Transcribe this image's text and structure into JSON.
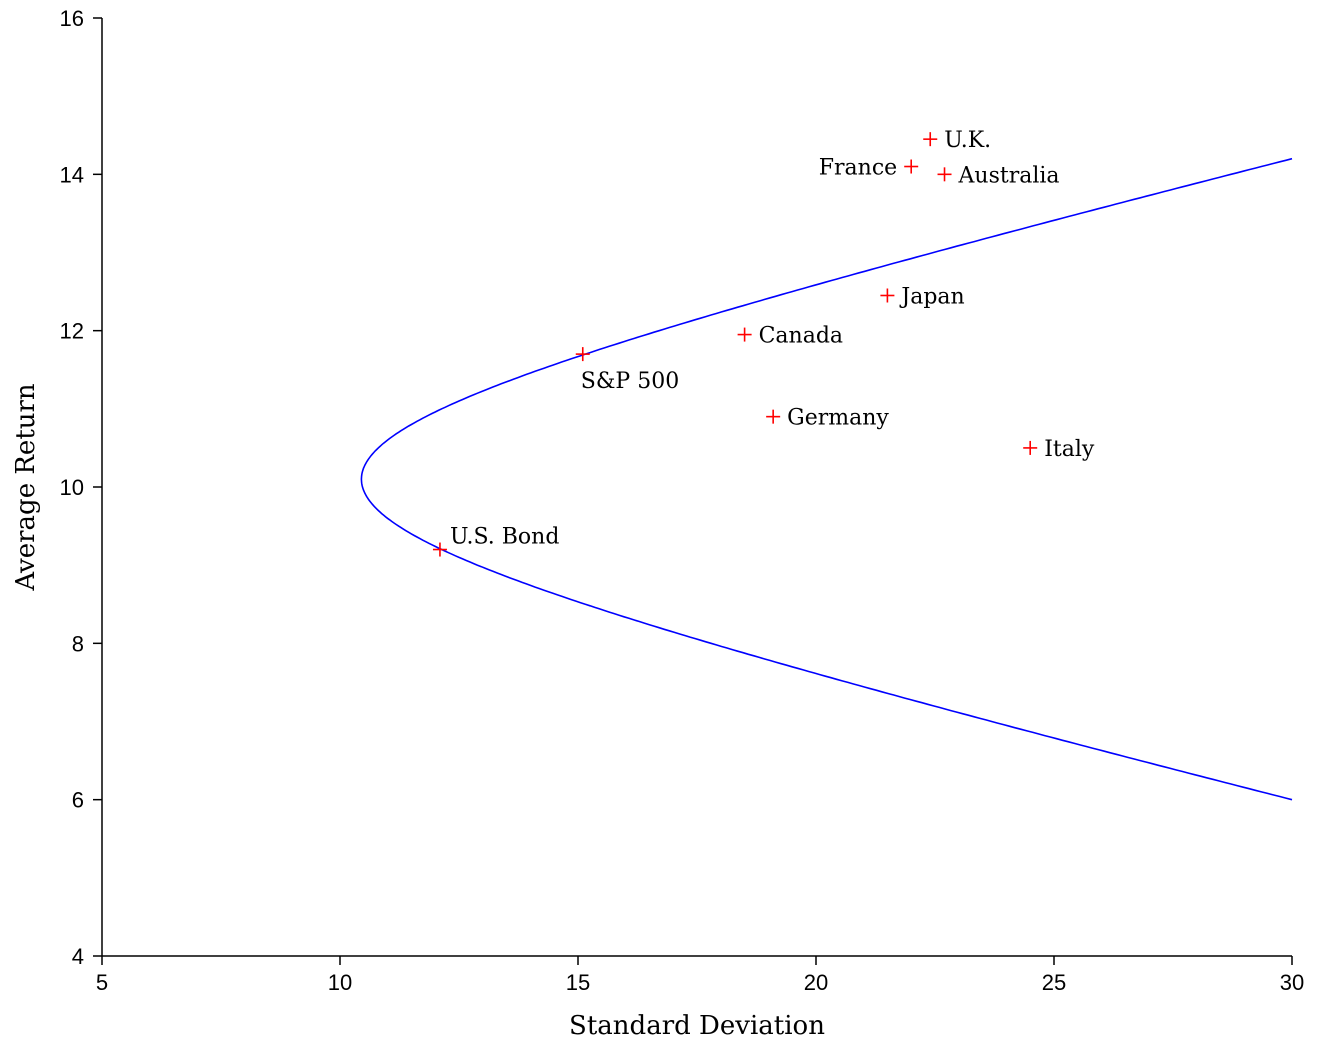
{
  "chart_data": {
    "type": "scatter",
    "xlabel": "Standard Deviation",
    "ylabel": "Average Return",
    "xlim": [
      5,
      30
    ],
    "ylim": [
      4,
      16
    ],
    "xticks": [
      5,
      10,
      15,
      20,
      25,
      30
    ],
    "yticks": [
      4,
      6,
      8,
      10,
      12,
      14,
      16
    ],
    "grid": false,
    "colors": {
      "points": "#ff0000",
      "frontier": "#0000ff",
      "axes": "#000000"
    },
    "points": [
      {
        "label": "U.S. Bond",
        "x": 12.1,
        "y": 9.2
      },
      {
        "label": "S&P 500",
        "x": 15.1,
        "y": 11.7
      },
      {
        "label": "Canada",
        "x": 18.5,
        "y": 11.95
      },
      {
        "label": "Germany",
        "x": 19.1,
        "y": 10.9
      },
      {
        "label": "Japan",
        "x": 21.5,
        "y": 12.45
      },
      {
        "label": "Italy",
        "x": 24.5,
        "y": 10.5
      },
      {
        "label": "France",
        "x": 22.0,
        "y": 14.1
      },
      {
        "label": "U.K.",
        "x": 22.4,
        "y": 14.45
      },
      {
        "label": "Australia",
        "x": 22.7,
        "y": 14.0
      }
    ],
    "frontier": {
      "type": "line",
      "x": [
        30.0,
        28.0,
        26.0,
        24.0,
        22.0,
        20.0,
        18.0,
        16.0,
        14.0,
        13.0,
        12.1,
        11.5,
        11.0,
        10.7,
        10.5,
        10.45,
        10.5,
        10.7,
        11.0,
        11.5,
        12.1,
        13.0,
        14.0,
        15.1,
        16.0,
        18.0,
        20.0,
        22.0,
        24.0,
        26.0,
        28.0,
        30.0
      ],
      "y": [
        6.0,
        6.45,
        6.9,
        7.35,
        7.85,
        8.4,
        8.95,
        9.45,
        9.9,
        10.2,
        9.2,
        9.45,
        9.65,
        9.85,
        10.0,
        10.1,
        10.25,
        10.45,
        10.65,
        10.95,
        11.25,
        11.55,
        11.8,
        12.05,
        12.2,
        12.55,
        12.95,
        13.35,
        13.7,
        14.0,
        14.3,
        14.2
      ]
    }
  }
}
